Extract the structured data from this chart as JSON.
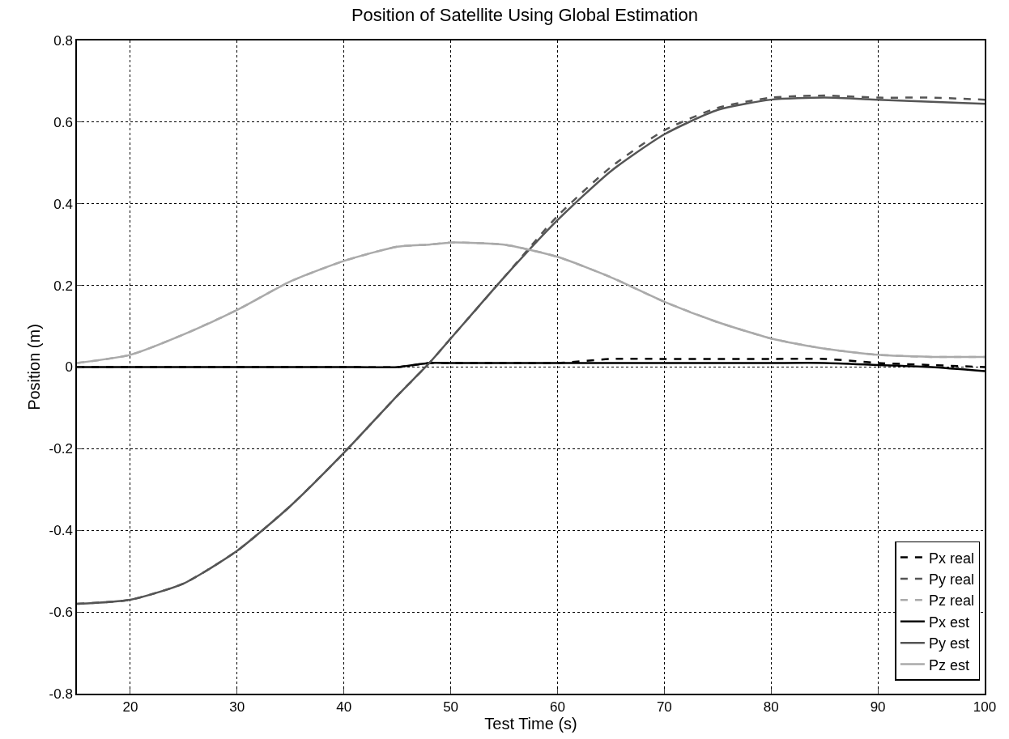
{
  "chart_data": {
    "type": "line",
    "title": "Position of Satellite Using Global Estimation",
    "xlabel": "Test Time (s)",
    "ylabel": "Position (m)",
    "x": [
      15,
      20,
      25,
      30,
      35,
      40,
      45,
      48,
      50,
      55,
      60,
      65,
      70,
      75,
      80,
      85,
      90,
      95,
      100
    ],
    "xlim": [
      15,
      100
    ],
    "xticks": [
      20,
      30,
      40,
      50,
      60,
      70,
      80,
      90,
      100
    ],
    "ylim": [
      -0.8,
      0.8
    ],
    "yticks": [
      -0.8,
      -0.6,
      -0.4,
      -0.2,
      0,
      0.2,
      0.4,
      0.6,
      0.8
    ],
    "grid": true,
    "legend": "bottom right",
    "marker": "none",
    "series": [
      {
        "name": "Px real",
        "color": "#000000",
        "line_style": "dashed",
        "values": [
          0,
          0,
          0,
          0,
          0,
          0,
          0,
          0.01,
          0.01,
          0.01,
          0.01,
          0.02,
          0.02,
          0.02,
          0.02,
          0.02,
          0.01,
          0.005,
          0
        ]
      },
      {
        "name": "Py real",
        "color": "#555555",
        "line_style": "dashed",
        "values": [
          -0.58,
          -0.57,
          -0.53,
          -0.45,
          -0.34,
          -0.21,
          -0.07,
          0.01,
          0.07,
          0.22,
          0.37,
          0.49,
          0.58,
          0.635,
          0.66,
          0.665,
          0.66,
          0.66,
          0.655
        ]
      },
      {
        "name": "Pz real",
        "color": "#aaaaaa",
        "line_style": "dashed",
        "values": [
          0.01,
          0.03,
          0.08,
          0.14,
          0.21,
          0.26,
          0.295,
          0.3,
          0.305,
          0.3,
          0.27,
          0.22,
          0.16,
          0.11,
          0.07,
          0.045,
          0.03,
          0.025,
          0.025
        ]
      },
      {
        "name": "Px est",
        "color": "#000000",
        "line_style": "solid",
        "values": [
          0,
          0,
          0,
          0,
          0,
          0,
          0,
          0.01,
          0.01,
          0.01,
          0.01,
          0.01,
          0.01,
          0.01,
          0.01,
          0.01,
          0.005,
          0,
          -0.01
        ]
      },
      {
        "name": "Py est",
        "color": "#555555",
        "line_style": "solid",
        "values": [
          -0.58,
          -0.57,
          -0.53,
          -0.45,
          -0.34,
          -0.21,
          -0.07,
          0.01,
          0.07,
          0.22,
          0.36,
          0.48,
          0.57,
          0.63,
          0.655,
          0.66,
          0.655,
          0.65,
          0.645
        ]
      },
      {
        "name": "Pz est",
        "color": "#aaaaaa",
        "line_style": "solid",
        "values": [
          0.01,
          0.03,
          0.08,
          0.14,
          0.21,
          0.26,
          0.295,
          0.3,
          0.305,
          0.3,
          0.27,
          0.22,
          0.16,
          0.11,
          0.07,
          0.045,
          0.03,
          0.025,
          0.025
        ]
      }
    ]
  }
}
